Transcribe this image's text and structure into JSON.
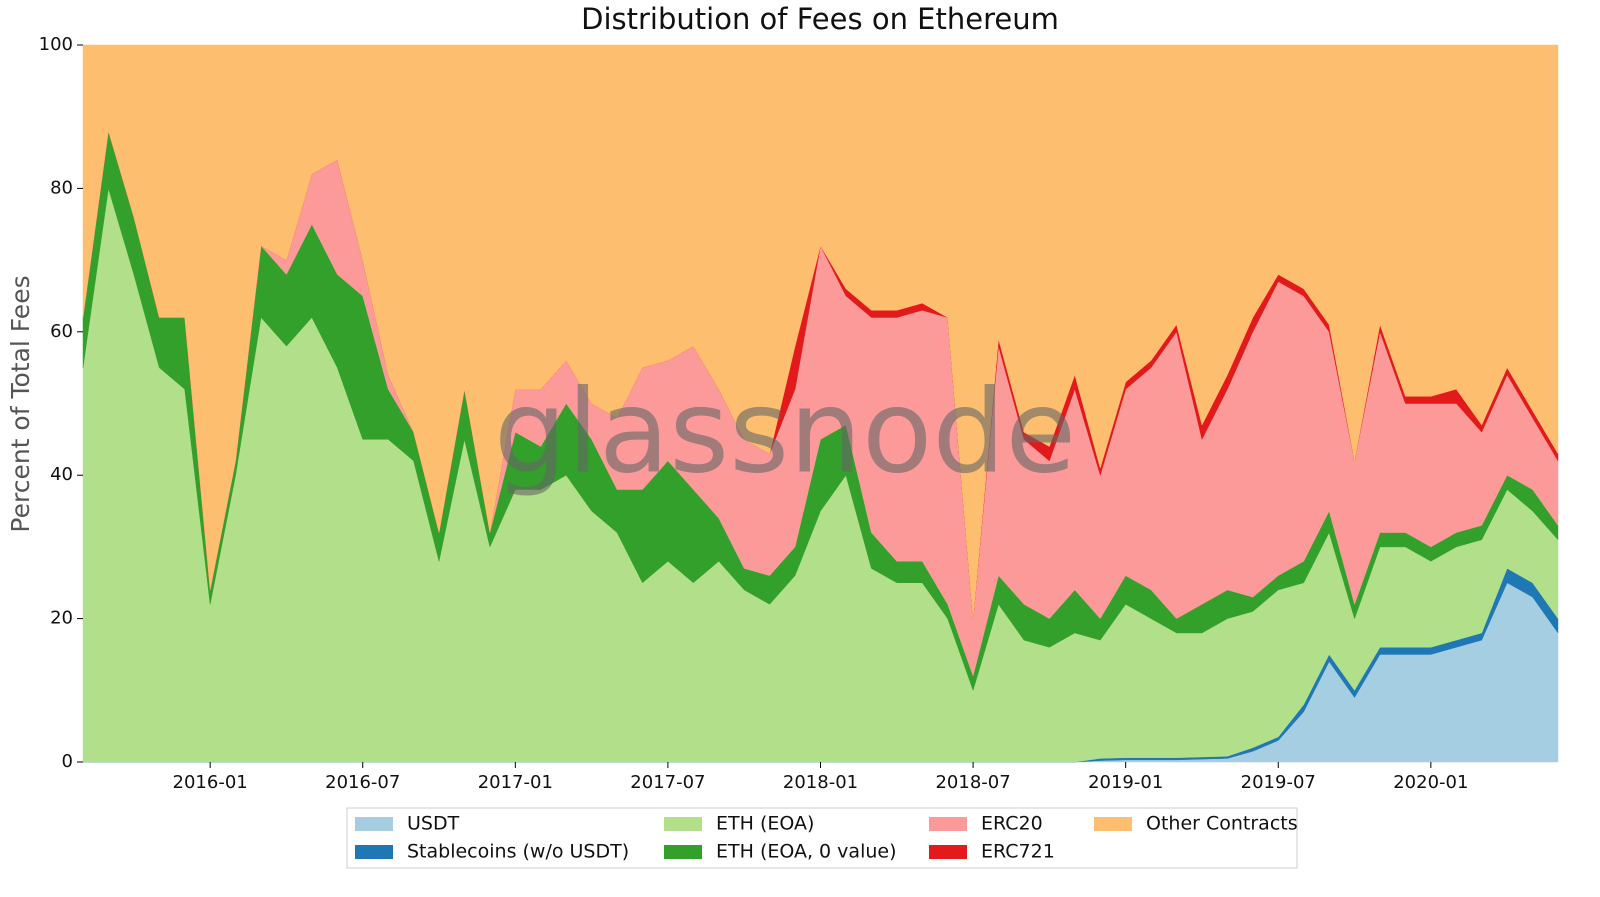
{
  "chart_data": {
    "type": "stacked_area",
    "title": "Distribution of Fees on Ethereum",
    "ylabel": "Percent of Total Fees",
    "watermark": "glassnode",
    "x": [
      "2015-08",
      "2015-09",
      "2015-10",
      "2015-11",
      "2015-12",
      "2016-01",
      "2016-02",
      "2016-03",
      "2016-04",
      "2016-05",
      "2016-06",
      "2016-07",
      "2016-08",
      "2016-09",
      "2016-10",
      "2016-11",
      "2016-12",
      "2017-01",
      "2017-02",
      "2017-03",
      "2017-04",
      "2017-05",
      "2017-06",
      "2017-07",
      "2017-08",
      "2017-09",
      "2017-10",
      "2017-11",
      "2017-12",
      "2018-01",
      "2018-02",
      "2018-03",
      "2018-04",
      "2018-05",
      "2018-06",
      "2018-07",
      "2018-08",
      "2018-09",
      "2018-10",
      "2018-11",
      "2018-12",
      "2019-01",
      "2019-02",
      "2019-03",
      "2019-04",
      "2019-05",
      "2019-06",
      "2019-07",
      "2019-08",
      "2019-09",
      "2019-10",
      "2019-11",
      "2019-12",
      "2020-01",
      "2020-02",
      "2020-03",
      "2020-04",
      "2020-05",
      "2020-06"
    ],
    "xlim": [
      "2015-08",
      "2020-06"
    ],
    "xticks": [
      "2016-01",
      "2016-07",
      "2017-01",
      "2017-07",
      "2018-01",
      "2018-07",
      "2019-01",
      "2019-07",
      "2020-01"
    ],
    "ylim": [
      0,
      100
    ],
    "yticks": [
      0,
      20,
      40,
      60,
      80,
      100
    ],
    "legend_position": "bottom",
    "series": [
      {
        "name": "USDT",
        "color": "#a6cee3",
        "values": [
          0,
          0,
          0,
          0,
          0,
          0,
          0,
          0,
          0,
          0,
          0,
          0,
          0,
          0,
          0,
          0,
          0,
          0,
          0,
          0,
          0,
          0,
          0,
          0,
          0,
          0,
          0,
          0,
          0,
          0,
          0,
          0,
          0,
          0,
          0,
          0,
          0,
          0,
          0,
          0,
          0.2,
          0.3,
          0.3,
          0.3,
          0.4,
          0.5,
          1.5,
          3,
          7,
          14,
          9,
          15,
          15,
          15,
          16,
          17,
          25,
          23,
          18
        ]
      },
      {
        "name": "Stablecoins (w/o USDT)",
        "color": "#1f78b4",
        "values": [
          0,
          0,
          0,
          0,
          0,
          0,
          0,
          0,
          0,
          0,
          0,
          0,
          0,
          0,
          0,
          0,
          0,
          0,
          0,
          0,
          0,
          0,
          0,
          0,
          0,
          0,
          0,
          0,
          0,
          0,
          0,
          0,
          0,
          0,
          0,
          0,
          0,
          0,
          0,
          0,
          0.3,
          0.3,
          0.3,
          0.3,
          0.3,
          0.3,
          0.5,
          0.5,
          1,
          1,
          1,
          1,
          1,
          1,
          1,
          1,
          2,
          2,
          2
        ]
      },
      {
        "name": "ETH (EOA)",
        "color": "#b2df8a",
        "values": [
          55,
          80,
          68,
          55,
          52,
          22,
          40,
          62,
          58,
          62,
          55,
          45,
          45,
          42,
          28,
          45,
          30,
          38,
          38,
          40,
          35,
          32,
          25,
          28,
          25,
          28,
          24,
          22,
          26,
          35,
          40,
          27,
          25,
          25,
          20,
          10,
          22,
          17,
          16,
          18,
          16.5,
          21.4,
          19.4,
          17.4,
          17.3,
          19.2,
          19,
          20.5,
          17,
          17,
          10,
          14,
          14,
          12,
          13,
          13,
          11,
          10,
          11
        ]
      },
      {
        "name": "ETH (EOA, 0 value)",
        "color": "#33a02c",
        "values": [
          7,
          8,
          8,
          7,
          10,
          2,
          2,
          10,
          10,
          13,
          13,
          20,
          7,
          4,
          4,
          7,
          2,
          8,
          6,
          10,
          10,
          6,
          13,
          14,
          13,
          6,
          3,
          4,
          4,
          10,
          7,
          5,
          3,
          3,
          2,
          2,
          4,
          5,
          4,
          6,
          3,
          4,
          4,
          2,
          4,
          4,
          2,
          2,
          3,
          3,
          2,
          2,
          2,
          2,
          2,
          2,
          2,
          3,
          2
        ]
      },
      {
        "name": "ERC20",
        "color": "#fb9a99",
        "values": [
          0,
          0,
          0,
          0,
          0,
          0,
          0,
          0,
          2,
          7,
          16,
          5,
          2,
          0,
          0,
          0,
          0,
          6,
          8,
          6,
          5,
          10,
          17,
          14,
          20,
          18,
          18,
          17,
          22,
          27,
          18,
          30,
          34,
          35,
          40,
          8,
          32,
          23,
          22,
          28,
          20,
          26,
          31,
          40,
          23,
          28,
          37,
          41,
          37,
          25,
          20,
          28,
          18,
          20,
          18,
          13,
          14,
          10,
          9
        ]
      },
      {
        "name": "ERC721",
        "color": "#e31a1c",
        "values": [
          0,
          0,
          0,
          0,
          0,
          0,
          0,
          0,
          0,
          0,
          0,
          0,
          0,
          0,
          0,
          0,
          0,
          0,
          0,
          0,
          0,
          0,
          0,
          0,
          0,
          0,
          0,
          0,
          6,
          0,
          1,
          1,
          1,
          1,
          0,
          0,
          1,
          1,
          2,
          2,
          1,
          1,
          1,
          1,
          2,
          2,
          2,
          1,
          1,
          1,
          0,
          1,
          1,
          1,
          2,
          1,
          1,
          1,
          1
        ]
      },
      {
        "name": "Other Contracts",
        "color": "#fdbf6f",
        "values": [
          38,
          12,
          24,
          38,
          38,
          76,
          58,
          28,
          30,
          18,
          16,
          30,
          46,
          54,
          68,
          48,
          68,
          48,
          48,
          44,
          50,
          52,
          45,
          44,
          42,
          48,
          55,
          57,
          42,
          28,
          34,
          37,
          37,
          36,
          38,
          80,
          41,
          54,
          56,
          46,
          59,
          47,
          44,
          39,
          53,
          46,
          38,
          32,
          34,
          39,
          58,
          39,
          49,
          49,
          48,
          53,
          45,
          51,
          57
        ]
      }
    ]
  }
}
